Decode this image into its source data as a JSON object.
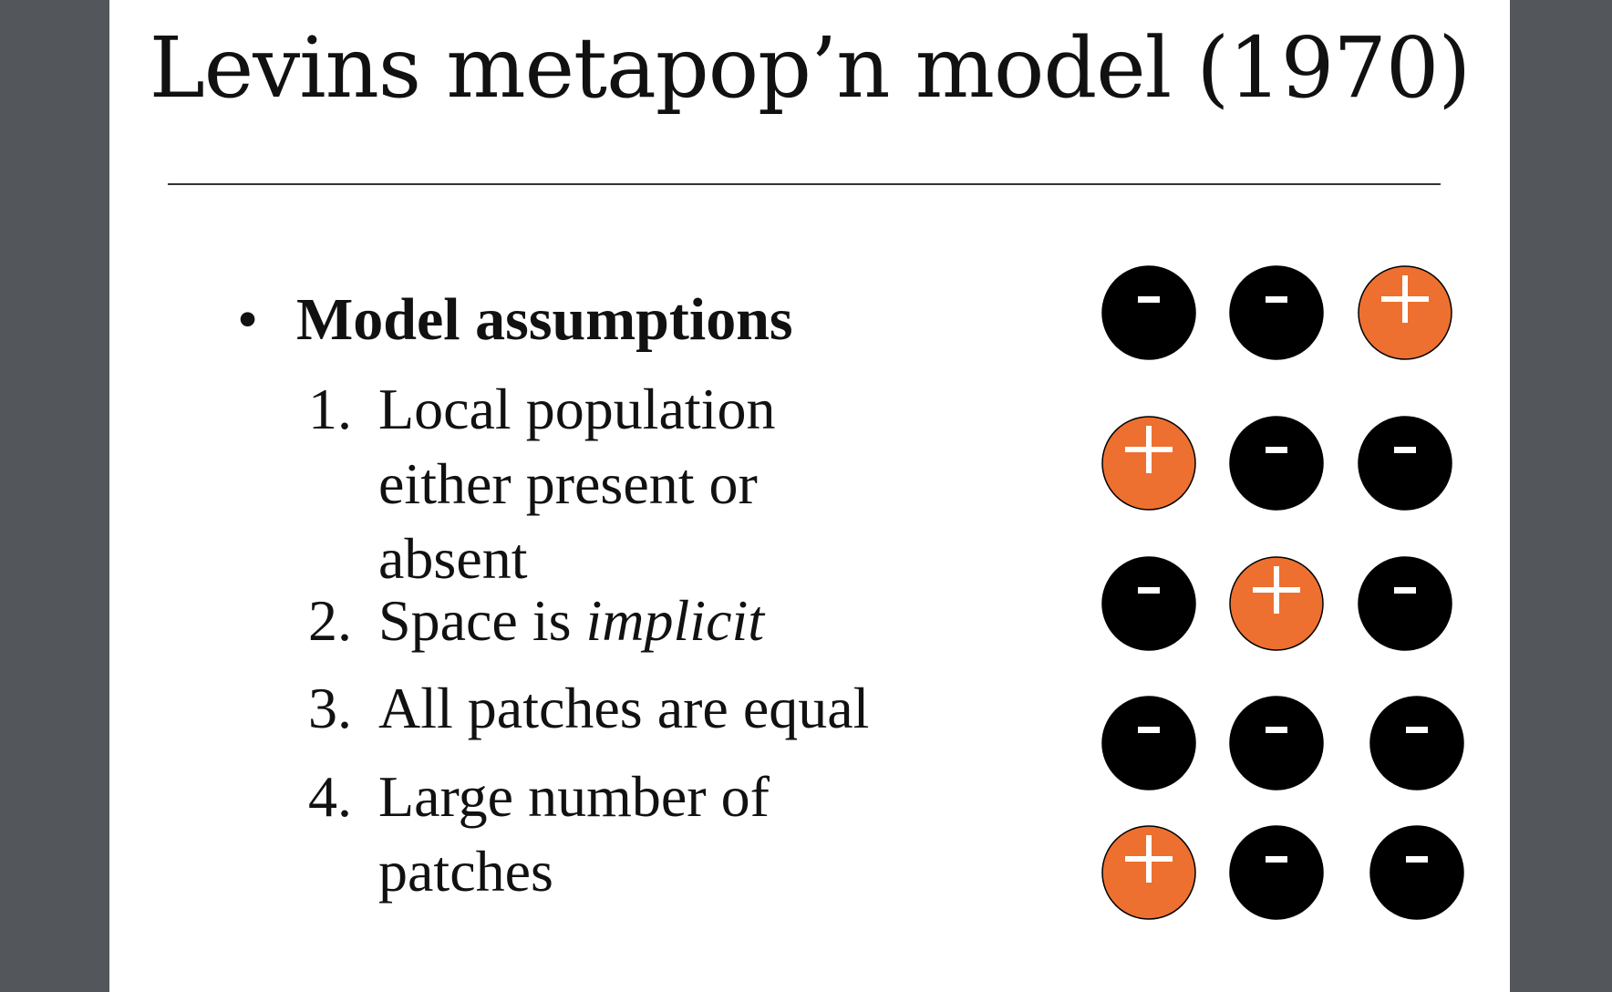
{
  "slide": {
    "title": "Levins metapop’n model (1970)",
    "bullet": "•",
    "heading": "Model assumptions",
    "items": [
      {
        "number": "1.",
        "lines": [
          "Local population",
          "either present or",
          "absent"
        ]
      },
      {
        "number": "2.",
        "pre": "Space is ",
        "emph": "implicit"
      },
      {
        "number": "3.",
        "lines": [
          "All patches are equal"
        ]
      },
      {
        "number": "4.",
        "lines": [
          "Large number of",
          "patches"
        ]
      }
    ]
  },
  "patch_grid": {
    "colors": {
      "occupied": "#ed7030",
      "empty": "#000000",
      "symbol": "#ffffff"
    },
    "symbols": {
      "occupied": "+",
      "empty": "-"
    },
    "rows": [
      [
        "-",
        "-",
        "+"
      ],
      [
        "+",
        "-",
        "-"
      ],
      [
        "-",
        "+",
        "-"
      ],
      [
        "-",
        "-",
        "-"
      ],
      [
        "+",
        "-",
        "-"
      ]
    ]
  }
}
